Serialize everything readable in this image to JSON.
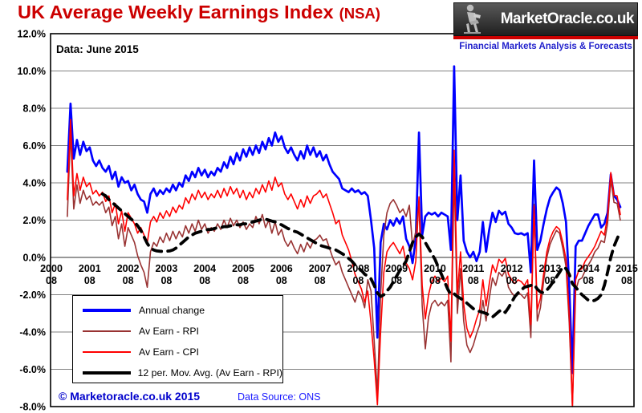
{
  "header": {
    "title": "UK Average Weekly Earnings Index",
    "title_suffix": "(NSA)",
    "title_color": "#CC0000"
  },
  "logo": {
    "site": "MarketOracle.co.uk",
    "tagline": "Financial Markets Analysis & Forecasts",
    "tagline_color": "#2222CC",
    "stripe_color": "#CC0000",
    "oracle_icon": "seated-oracle-figure"
  },
  "annotations": {
    "data_note": "Data: June 2015",
    "copyright": "© Marketoracle.co.uk 2015",
    "copyright_color": "#0000CC",
    "source": "Data Source: ONS",
    "source_color": "#1A1AFF"
  },
  "chart_data": {
    "type": "line",
    "title": "UK Average Weekly Earnings Index (NSA)",
    "x_unit": "month",
    "x_range": [
      "2001-01",
      "2015-06"
    ],
    "ylim": [
      -8,
      12
    ],
    "grid": true,
    "gridline_color": "#808080",
    "legend_position": "inside-bottom-left",
    "y_ticks": [
      {
        "label": "12.0%",
        "value": 12
      },
      {
        "label": "10.0%",
        "value": 10
      },
      {
        "label": "8.0%",
        "value": 8
      },
      {
        "label": "6.0%",
        "value": 6
      },
      {
        "label": "4.0%",
        "value": 4
      },
      {
        "label": "2.0%",
        "value": 2
      },
      {
        "label": "0.0%",
        "value": 0
      },
      {
        "label": "-2.0%",
        "value": -2
      },
      {
        "label": "-4.0%",
        "value": -4
      },
      {
        "label": "-6.0%",
        "value": -6
      },
      {
        "label": "-8.0%",
        "value": -8
      }
    ],
    "x_ticks": [
      {
        "year": "2000",
        "sub": "08"
      },
      {
        "year": "2001",
        "sub": "08"
      },
      {
        "year": "2002",
        "sub": "08"
      },
      {
        "year": "2003",
        "sub": "08"
      },
      {
        "year": "2004",
        "sub": "08"
      },
      {
        "year": "2005",
        "sub": "08"
      },
      {
        "year": "2006",
        "sub": "08"
      },
      {
        "year": "2007",
        "sub": "08"
      },
      {
        "year": "2008",
        "sub": "08"
      },
      {
        "year": "2009",
        "sub": "08"
      },
      {
        "year": "2010",
        "sub": "08"
      },
      {
        "year": "2011",
        "sub": "08"
      },
      {
        "year": "2012",
        "sub": "08"
      },
      {
        "year": "2013",
        "sub": "08"
      },
      {
        "year": "2014",
        "sub": "08"
      },
      {
        "year": "2015",
        "sub": "08"
      }
    ],
    "series": [
      {
        "name": "Annual change",
        "color": "#0000FF",
        "width": 2.7,
        "dash": null,
        "offset_months": 5,
        "values": [
          4.6,
          8.25,
          5.3,
          6.3,
          5.5,
          6.2,
          5.7,
          5.9,
          5.2,
          4.9,
          5.2,
          4.8,
          4.6,
          4.9,
          4.2,
          4.6,
          3.8,
          4.3,
          4.0,
          4.1,
          3.6,
          3.9,
          3.4,
          3.1,
          3.0,
          2.4,
          3.4,
          3.7,
          3.3,
          3.6,
          3.4,
          3.7,
          3.5,
          3.9,
          3.6,
          4.0,
          3.8,
          4.4,
          4.1,
          4.6,
          4.3,
          4.8,
          4.4,
          4.7,
          4.3,
          4.6,
          4.4,
          4.8,
          4.6,
          5.1,
          4.8,
          5.4,
          5.0,
          5.6,
          5.2,
          5.8,
          5.4,
          5.9,
          5.5,
          6.0,
          5.6,
          6.2,
          5.8,
          6.4,
          6.0,
          6.7,
          6.2,
          6.5,
          5.9,
          5.6,
          5.9,
          5.5,
          5.2,
          5.7,
          5.3,
          6.0,
          5.5,
          5.9,
          5.4,
          5.7,
          5.2,
          5.5,
          5.0,
          4.6,
          4.4,
          4.2,
          3.7,
          3.6,
          3.5,
          3.7,
          3.5,
          3.6,
          3.4,
          3.5,
          3.3,
          2.0,
          0.5,
          -4.3,
          0.8,
          1.8,
          1.5,
          2.0,
          1.7,
          2.1,
          1.8,
          2.2,
          1.0,
          0.6,
          -0.3,
          1.0,
          6.7,
          1.2,
          2.2,
          2.4,
          2.3,
          2.4,
          2.2,
          2.4,
          2.3,
          2.2,
          0.4,
          10.25,
          2.0,
          4.4,
          0.9,
          0.3,
          0.0,
          0.3,
          -0.2,
          0.3,
          1.9,
          0.3,
          1.5,
          2.4,
          1.9,
          2.5,
          2.3,
          2.45,
          1.8,
          1.6,
          1.3,
          1.25,
          1.3,
          1.2,
          1.3,
          -0.8,
          5.2,
          0.4,
          0.9,
          1.8,
          2.6,
          3.2,
          3.5,
          3.75,
          3.6,
          2.9,
          1.9,
          -1.5,
          -6.2,
          0.6,
          0.9,
          0.9,
          1.3,
          1.7,
          2.0,
          2.3,
          2.3,
          1.6,
          1.8,
          2.4,
          4.45,
          3.3,
          3.1,
          2.7
        ]
      },
      {
        "name": "Av Earn - RPI",
        "color": "#993333",
        "width": 1.6,
        "dash": null,
        "offset_months": 5,
        "values": [
          2.2,
          6.7,
          2.6,
          3.9,
          2.9,
          3.6,
          3.1,
          3.3,
          2.8,
          3.0,
          2.8,
          3.0,
          2.4,
          2.7,
          1.7,
          2.2,
          1.0,
          1.8,
          0.6,
          1.6,
          1.2,
          0.8,
          0.1,
          -0.4,
          -0.8,
          -1.6,
          0.3,
          0.8,
          0.6,
          1.1,
          0.8,
          1.3,
          0.9,
          1.4,
          1.0,
          1.4,
          1.1,
          1.7,
          1.3,
          1.8,
          1.4,
          2.0,
          1.5,
          1.8,
          1.3,
          1.6,
          1.4,
          1.8,
          1.5,
          2.0,
          1.6,
          2.1,
          1.7,
          2.0,
          1.6,
          1.9,
          1.5,
          1.8,
          1.6,
          2.2,
          1.8,
          2.3,
          1.6,
          2.0,
          1.3,
          1.9,
          1.2,
          1.5,
          0.9,
          0.6,
          0.9,
          0.5,
          0.2,
          0.7,
          0.3,
          0.8,
          0.5,
          0.9,
          1.0,
          1.2,
          0.9,
          1.0,
          0.5,
          0.0,
          -0.4,
          -0.2,
          -0.8,
          -1.2,
          -1.6,
          -2.0,
          -2.4,
          -1.8,
          -2.1,
          -2.7,
          -1.2,
          -1.8,
          -4.5,
          -7.3,
          -2.0,
          1.2,
          2.4,
          2.9,
          3.1,
          2.8,
          2.4,
          2.6,
          2.2,
          2.8,
          0.6,
          1.4,
          2.9,
          -2.6,
          -4.9,
          -3.2,
          -2.5,
          -2.3,
          -2.6,
          -2.4,
          -2.6,
          -2.3,
          -5.6,
          4.6,
          -3.0,
          -0.6,
          -3.4,
          -4.7,
          -5.1,
          -4.7,
          -4.1,
          -3.6,
          -2.3,
          -3.4,
          -2.2,
          -1.1,
          -1.5,
          -0.8,
          -1.0,
          -0.7,
          -1.6,
          -1.9,
          -2.1,
          -1.9,
          -2.0,
          -2.2,
          -1.9,
          -4.3,
          2.85,
          -3.4,
          -2.7,
          -1.3,
          0.0,
          0.7,
          1.1,
          1.45,
          1.3,
          0.5,
          -0.5,
          -3.5,
          -8.0,
          -1.8,
          -1.2,
          -1.1,
          -0.7,
          -0.4,
          -0.1,
          0.3,
          0.5,
          0.9,
          0.8,
          1.8,
          4.2,
          2.95,
          2.9,
          2.0
        ]
      },
      {
        "name": "Av Earn - CPI",
        "color": "#FF0000",
        "width": 1.6,
        "dash": null,
        "offset_months": 5,
        "values": [
          3.1,
          7.4,
          3.3,
          4.5,
          3.6,
          4.3,
          3.8,
          4.0,
          3.4,
          3.6,
          3.3,
          3.5,
          3.0,
          3.3,
          2.4,
          2.9,
          1.8,
          2.5,
          1.4,
          2.4,
          2.1,
          1.8,
          1.3,
          1.6,
          1.2,
          0.8,
          1.9,
          2.2,
          1.9,
          2.4,
          2.1,
          2.5,
          2.2,
          2.7,
          2.4,
          2.8,
          2.6,
          3.2,
          2.9,
          3.4,
          3.1,
          3.6,
          3.2,
          3.5,
          3.1,
          3.4,
          3.2,
          3.6,
          3.2,
          3.7,
          3.3,
          3.8,
          3.4,
          3.7,
          3.2,
          3.6,
          3.1,
          3.5,
          3.2,
          3.7,
          3.4,
          3.9,
          3.5,
          4.1,
          3.6,
          4.3,
          3.8,
          4.0,
          3.4,
          3.1,
          3.4,
          3.0,
          2.6,
          3.1,
          2.7,
          3.3,
          2.9,
          3.3,
          3.4,
          3.6,
          3.2,
          3.4,
          2.9,
          2.4,
          1.8,
          2.0,
          1.2,
          0.8,
          0.4,
          -0.2,
          -0.9,
          -1.3,
          -1.7,
          -2.4,
          -1.8,
          -3.5,
          -5.5,
          -7.9,
          -4.0,
          -0.8,
          0.3,
          0.6,
          0.8,
          0.5,
          0.2,
          0.6,
          -0.3,
          -0.6,
          -1.2,
          -0.2,
          3.25,
          -1.5,
          -3.3,
          -2.0,
          -1.3,
          -1.0,
          -1.3,
          -1.1,
          -1.3,
          -1.0,
          -4.5,
          5.75,
          -2.0,
          0.3,
          -2.5,
          -3.8,
          -4.3,
          -3.9,
          -3.3,
          -2.8,
          -1.2,
          -2.6,
          -1.4,
          -0.4,
          -0.8,
          -0.1,
          -0.3,
          -0.05,
          -0.9,
          -1.2,
          -1.4,
          -1.2,
          -1.3,
          -1.5,
          -1.2,
          -3.6,
          2.75,
          -2.8,
          -2.2,
          -0.9,
          0.3,
          1.0,
          1.4,
          1.65,
          1.5,
          0.8,
          -0.1,
          -3.0,
          -8.0,
          -1.2,
          -0.7,
          -0.6,
          -0.2,
          0.05,
          0.3,
          0.6,
          1.0,
          1.4,
          1.2,
          2.2,
          4.55,
          3.35,
          3.3,
          2.3
        ]
      },
      {
        "name": "12 per. Mov. Avg. (Av Earn - RPI)",
        "color": "#000000",
        "width": 3.8,
        "dash": "11,8",
        "offset_months": 16,
        "values": [
          3.4,
          3.3,
          3.1,
          2.95,
          2.8,
          2.65,
          2.5,
          2.35,
          2.2,
          2.05,
          1.9,
          1.7,
          1.45,
          1.1,
          0.75,
          0.5,
          0.4,
          0.35,
          0.33,
          0.32,
          0.33,
          0.35,
          0.4,
          0.5,
          0.65,
          0.8,
          0.95,
          1.1,
          1.2,
          1.3,
          1.35,
          1.4,
          1.45,
          1.5,
          1.5,
          1.55,
          1.6,
          1.6,
          1.65,
          1.65,
          1.7,
          1.7,
          1.75,
          1.75,
          1.8,
          1.8,
          1.85,
          1.9,
          1.95,
          2.0,
          2.05,
          2.05,
          2.0,
          1.95,
          1.9,
          1.8,
          1.75,
          1.65,
          1.55,
          1.5,
          1.4,
          1.35,
          1.25,
          1.15,
          1.05,
          0.95,
          0.85,
          0.75,
          0.65,
          0.6,
          0.55,
          0.5,
          0.45,
          0.4,
          0.3,
          0.2,
          0.1,
          -0.05,
          -0.2,
          -0.4,
          -0.55,
          -0.7,
          -0.9,
          -1.0,
          -1.15,
          -1.5,
          -1.9,
          -2.1,
          -2.0,
          -1.8,
          -1.6,
          -1.3,
          -1.0,
          -0.7,
          -0.45,
          -0.2,
          0.3,
          0.8,
          1.1,
          1.25,
          1.1,
          0.8,
          0.5,
          0.2,
          -0.1,
          -0.5,
          -0.9,
          -1.3,
          -1.7,
          -2.0,
          -1.95,
          -2.1,
          -2.2,
          -2.3,
          -2.45,
          -2.6,
          -2.75,
          -2.85,
          -2.9,
          -2.95,
          -3.0,
          -3.1,
          -3.2,
          -3.05,
          -2.9,
          -2.8,
          -2.95,
          -2.7,
          -2.4,
          -2.1,
          -1.9,
          -1.75,
          -1.6,
          -1.55,
          -1.5,
          -1.45,
          -1.7,
          -1.85,
          -1.9,
          -1.75,
          -1.55,
          -1.3,
          -1.05,
          -0.8,
          -0.5,
          -0.6,
          -0.9,
          -1.4,
          -1.6,
          -1.8,
          -2.0,
          -2.15,
          -2.3,
          -2.35,
          -2.3,
          -2.2,
          -2.0,
          -1.5,
          -0.8,
          0.0,
          0.6,
          1.0,
          1.4
        ]
      }
    ]
  }
}
